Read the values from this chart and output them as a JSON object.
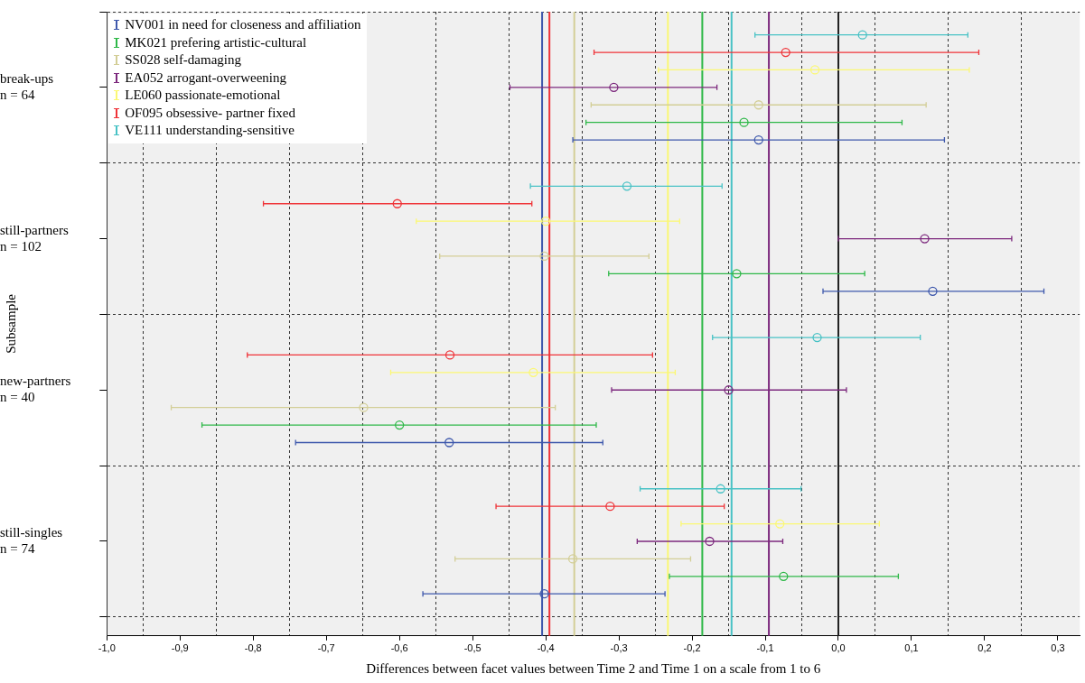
{
  "chart_data": {
    "type": "scatter",
    "orientation": "horizontal",
    "xlabel": "Differences between facet values between Time 2 and Time 1 on a scale from 1 to 6",
    "ylabel": "Subsample",
    "categories": [
      "break-ups\nn = 64",
      "still-partners\nn = 102",
      "new-partners\nn = 40",
      "still-singles\nn = 74"
    ],
    "xlim": [
      -1.0,
      0.33
    ],
    "xticks": [
      {
        "value": -1.0,
        "label": "-1,0"
      },
      {
        "value": -0.95,
        "label": null
      },
      {
        "value": -0.9,
        "label": "-0,9"
      },
      {
        "value": -0.85,
        "label": null
      },
      {
        "value": -0.8,
        "label": "-0,8"
      },
      {
        "value": -0.75,
        "label": null
      },
      {
        "value": -0.7,
        "label": "-0,7"
      },
      {
        "value": -0.65,
        "label": null
      },
      {
        "value": -0.6,
        "label": "-0,6"
      },
      {
        "value": -0.55,
        "label": null
      },
      {
        "value": -0.5,
        "label": "-0,5"
      },
      {
        "value": -0.45,
        "label": null
      },
      {
        "value": -0.4,
        "label": "-0,4"
      },
      {
        "value": -0.35,
        "label": null
      },
      {
        "value": -0.3,
        "label": "-0,3"
      },
      {
        "value": -0.25,
        "label": null
      },
      {
        "value": -0.2,
        "label": "-0,2"
      },
      {
        "value": -0.15,
        "label": null
      },
      {
        "value": -0.1,
        "label": "-0,1"
      },
      {
        "value": -0.05,
        "label": null
      },
      {
        "value": 0.0,
        "label": "0,0"
      },
      {
        "value": 0.05,
        "label": null
      },
      {
        "value": 0.1,
        "label": "0,1"
      },
      {
        "value": 0.15,
        "label": null
      },
      {
        "value": 0.2,
        "label": "0,2"
      },
      {
        "value": 0.25,
        "label": null
      },
      {
        "value": 0.3,
        "label": "0,3"
      }
    ],
    "grid": true,
    "legend": "top left",
    "marker": "circle",
    "series": [
      {
        "name": "NV001 in need for closeness and affiliation",
        "color": "#3e58ac",
        "values": [
          -0.109,
          0.129,
          -0.532,
          -0.402
        ],
        "errors": [
          [
            -0.363,
            0.145
          ],
          [
            -0.021,
            0.281
          ],
          [
            -0.742,
            -0.322
          ],
          [
            -0.568,
            -0.237
          ]
        ]
      },
      {
        "name": "MK021 prefering artistic-cultural",
        "color": "#2eb848",
        "values": [
          -0.129,
          -0.139,
          -0.6,
          -0.075
        ],
        "errors": [
          [
            -0.345,
            0.087
          ],
          [
            -0.314,
            0.036
          ],
          [
            -0.87,
            -0.331
          ],
          [
            -0.231,
            0.082
          ]
        ]
      },
      {
        "name": "SS028 self-damaging",
        "color": "#d3ce97",
        "values": [
          -0.109,
          -0.402,
          -0.649,
          -0.363
        ],
        "errors": [
          [
            -0.338,
            0.12
          ],
          [
            -0.545,
            -0.259
          ],
          [
            -0.912,
            -0.387
          ],
          [
            -0.524,
            -0.202
          ]
        ]
      },
      {
        "name": "EA052 arrogant-overweening",
        "color": "#7c287d",
        "values": [
          -0.307,
          0.118,
          -0.15,
          -0.176
        ],
        "errors": [
          [
            -0.449,
            -0.166
          ],
          [
            0.0,
            0.237
          ],
          [
            -0.31,
            0.011
          ],
          [
            -0.275,
            -0.076
          ]
        ]
      },
      {
        "name": "LE060 passionate-emotional",
        "color": "#fbf873",
        "values": [
          -0.032,
          -0.4,
          -0.417,
          -0.08
        ],
        "errors": [
          [
            -0.246,
            0.179
          ],
          [
            -0.577,
            -0.217
          ],
          [
            -0.612,
            -0.223
          ],
          [
            -0.215,
            0.056
          ]
        ]
      },
      {
        "name": "OF095 obsessive- partner fixed",
        "color": "#ef3338",
        "values": [
          -0.072,
          -0.603,
          -0.531,
          -0.312
        ],
        "errors": [
          [
            -0.334,
            0.192
          ],
          [
            -0.786,
            -0.419
          ],
          [
            -0.808,
            -0.254
          ],
          [
            -0.468,
            -0.156
          ]
        ]
      },
      {
        "name": "VE111 understanding-sensitive",
        "color": "#48c2c5",
        "values": [
          0.033,
          -0.289,
          -0.029,
          -0.161
        ],
        "errors": [
          [
            -0.114,
            0.177
          ],
          [
            -0.421,
            -0.159
          ],
          [
            -0.172,
            0.112
          ],
          [
            -0.271,
            -0.051
          ]
        ]
      }
    ],
    "ref_lines": [
      {
        "axis": "x",
        "value": -0.405,
        "color": "#3e58ac"
      },
      {
        "axis": "x",
        "value": -0.395,
        "color": "#ef3338"
      },
      {
        "axis": "x",
        "value": -0.361,
        "color": "#d3ce97"
      },
      {
        "axis": "x",
        "value": -0.233,
        "color": "#fbf873"
      },
      {
        "axis": "x",
        "value": -0.186,
        "color": "#2eb848"
      },
      {
        "axis": "x",
        "value": -0.146,
        "color": "#48c2c5"
      },
      {
        "axis": "x",
        "value": -0.095,
        "color": "#7c287d"
      },
      {
        "axis": "x",
        "value": 0.0,
        "color": "#222222"
      }
    ]
  }
}
